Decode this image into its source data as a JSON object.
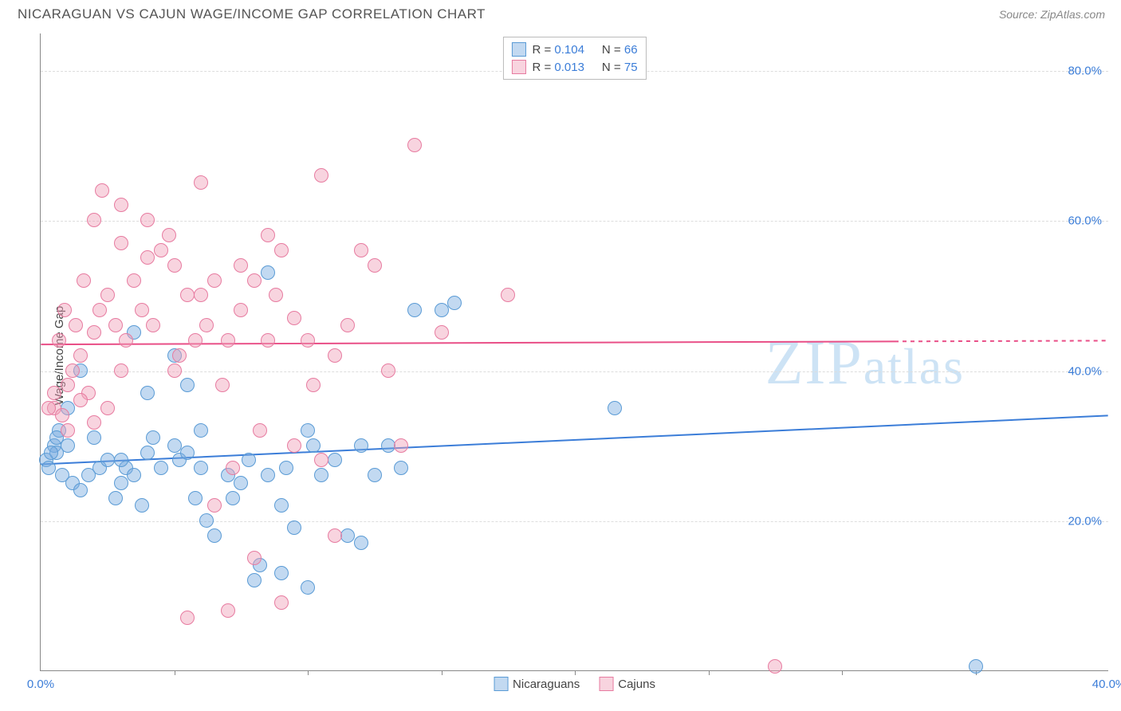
{
  "header": {
    "title": "NICARAGUAN VS CAJUN WAGE/INCOME GAP CORRELATION CHART",
    "source": "Source: ZipAtlas.com"
  },
  "watermark": {
    "text_large": "ZIP",
    "text_small": "atlas",
    "color": "#cde3f5"
  },
  "chart": {
    "type": "scatter",
    "ylabel": "Wage/Income Gap",
    "xlim": [
      0,
      40
    ],
    "ylim": [
      0,
      85
    ],
    "background_color": "#ffffff",
    "grid_color": "#dddddd",
    "border_color": "#888888",
    "tick_label_color": "#3b7dd8",
    "axis_label_color": "#444444",
    "ylabel_fontsize": 15,
    "tick_fontsize": 15,
    "yticks": [
      {
        "value": 20,
        "label": "20.0%"
      },
      {
        "value": 40,
        "label": "40.0%"
      },
      {
        "value": 60,
        "label": "60.0%"
      },
      {
        "value": 80,
        "label": "80.0%"
      }
    ],
    "xticks_minor": [
      5,
      10,
      15,
      20,
      25,
      30,
      35
    ],
    "xticks_label": [
      {
        "value": 0,
        "label": "0.0%"
      },
      {
        "value": 40,
        "label": "40.0%"
      }
    ],
    "marker_radius": 9,
    "marker_border_width": 1.5,
    "series": [
      {
        "name": "Nicaraguans",
        "fill_color": "rgba(120,170,225,0.45)",
        "border_color": "#5a9bd5",
        "trend_color": "#3b7dd8",
        "trend_width": 2,
        "trend_y_start": 27.5,
        "trend_y_end": 34.0,
        "trend_dash_start_x": 40,
        "stats": {
          "R": "0.104",
          "N": "66"
        },
        "points": [
          [
            0.2,
            28
          ],
          [
            0.5,
            30
          ],
          [
            0.6,
            29
          ],
          [
            0.3,
            27
          ],
          [
            0.8,
            26
          ],
          [
            0.7,
            32
          ],
          [
            1.0,
            30
          ],
          [
            1.2,
            25
          ],
          [
            1.5,
            24
          ],
          [
            2.0,
            31
          ],
          [
            2.2,
            27
          ],
          [
            2.5,
            28
          ],
          [
            2.8,
            23
          ],
          [
            3.0,
            25
          ],
          [
            3.2,
            27
          ],
          [
            3.5,
            26
          ],
          [
            3.8,
            22
          ],
          [
            4.0,
            29
          ],
          [
            4.2,
            31
          ],
          [
            4.5,
            27
          ],
          [
            5.0,
            30
          ],
          [
            5.2,
            28
          ],
          [
            5.5,
            29
          ],
          [
            5.8,
            23
          ],
          [
            6.0,
            27
          ],
          [
            6.2,
            20
          ],
          [
            6.5,
            18
          ],
          [
            7.0,
            26
          ],
          [
            7.2,
            23
          ],
          [
            7.5,
            25
          ],
          [
            7.8,
            28
          ],
          [
            8.0,
            12
          ],
          [
            8.2,
            14
          ],
          [
            8.5,
            53
          ],
          [
            9.0,
            22
          ],
          [
            9.2,
            27
          ],
          [
            9.5,
            19
          ],
          [
            10.0,
            32
          ],
          [
            10.2,
            30
          ],
          [
            10.5,
            26
          ],
          [
            11.0,
            28
          ],
          [
            11.5,
            18
          ],
          [
            12.0,
            30
          ],
          [
            12.5,
            26
          ],
          [
            13.0,
            30
          ],
          [
            13.5,
            27
          ],
          [
            14.0,
            48
          ],
          [
            15.0,
            48
          ],
          [
            15.5,
            49
          ],
          [
            21.5,
            35
          ],
          [
            35.0,
            0.5
          ],
          [
            1.0,
            35
          ],
          [
            1.5,
            40
          ],
          [
            3.5,
            45
          ],
          [
            4.0,
            37
          ],
          [
            5.0,
            42
          ],
          [
            5.5,
            38
          ],
          [
            6.0,
            32
          ],
          [
            0.4,
            29
          ],
          [
            0.6,
            31
          ],
          [
            1.8,
            26
          ],
          [
            3.0,
            28
          ],
          [
            8.5,
            26
          ],
          [
            9.0,
            13
          ],
          [
            10.0,
            11
          ],
          [
            12.0,
            17
          ]
        ]
      },
      {
        "name": "Cajuns",
        "fill_color": "rgba(240,160,185,0.45)",
        "border_color": "#e77ba0",
        "trend_color": "#e94f87",
        "trend_width": 2,
        "trend_y_start": 43.5,
        "trend_y_end": 44.0,
        "trend_dash_start_x": 32,
        "stats": {
          "R": "0.013",
          "N": "75"
        },
        "points": [
          [
            0.5,
            35
          ],
          [
            0.8,
            34
          ],
          [
            1.0,
            38
          ],
          [
            1.2,
            40
          ],
          [
            1.5,
            42
          ],
          [
            1.8,
            37
          ],
          [
            2.0,
            45
          ],
          [
            2.2,
            48
          ],
          [
            2.5,
            50
          ],
          [
            2.8,
            46
          ],
          [
            3.0,
            57
          ],
          [
            3.2,
            44
          ],
          [
            3.5,
            52
          ],
          [
            3.8,
            48
          ],
          [
            4.0,
            55
          ],
          [
            4.2,
            46
          ],
          [
            4.5,
            56
          ],
          [
            4.8,
            58
          ],
          [
            5.0,
            40
          ],
          [
            5.2,
            42
          ],
          [
            5.5,
            50
          ],
          [
            5.8,
            44
          ],
          [
            6.0,
            65
          ],
          [
            6.2,
            46
          ],
          [
            6.5,
            52
          ],
          [
            6.8,
            38
          ],
          [
            7.0,
            44
          ],
          [
            7.2,
            27
          ],
          [
            7.5,
            48
          ],
          [
            8.0,
            52
          ],
          [
            8.2,
            32
          ],
          [
            8.5,
            58
          ],
          [
            8.8,
            50
          ],
          [
            9.0,
            56
          ],
          [
            9.5,
            47
          ],
          [
            10.0,
            44
          ],
          [
            10.2,
            38
          ],
          [
            10.5,
            66
          ],
          [
            11.0,
            42
          ],
          [
            11.5,
            46
          ],
          [
            12.0,
            56
          ],
          [
            12.5,
            54
          ],
          [
            13.0,
            40
          ],
          [
            13.5,
            30
          ],
          [
            14.0,
            70
          ],
          [
            15.0,
            45
          ],
          [
            17.5,
            50
          ],
          [
            27.5,
            0.5
          ],
          [
            1.0,
            32
          ],
          [
            1.5,
            36
          ],
          [
            2.0,
            33
          ],
          [
            2.5,
            35
          ],
          [
            3.0,
            40
          ],
          [
            0.3,
            35
          ],
          [
            0.5,
            37
          ],
          [
            0.7,
            44
          ],
          [
            0.9,
            48
          ],
          [
            1.3,
            46
          ],
          [
            1.6,
            52
          ],
          [
            2.0,
            60
          ],
          [
            2.3,
            64
          ],
          [
            3.0,
            62
          ],
          [
            4.0,
            60
          ],
          [
            5.0,
            54
          ],
          [
            5.5,
            7
          ],
          [
            6.0,
            50
          ],
          [
            7.0,
            8
          ],
          [
            8.0,
            15
          ],
          [
            9.0,
            9
          ],
          [
            11.0,
            18
          ],
          [
            10.5,
            28
          ],
          [
            9.5,
            30
          ],
          [
            6.5,
            22
          ],
          [
            7.5,
            54
          ],
          [
            8.5,
            44
          ]
        ]
      }
    ],
    "legend_bottom": [
      {
        "label": "Nicaraguans",
        "fill": "rgba(120,170,225,0.45)",
        "border": "#5a9bd5"
      },
      {
        "label": "Cajuns",
        "fill": "rgba(240,160,185,0.45)",
        "border": "#e77ba0"
      }
    ]
  }
}
